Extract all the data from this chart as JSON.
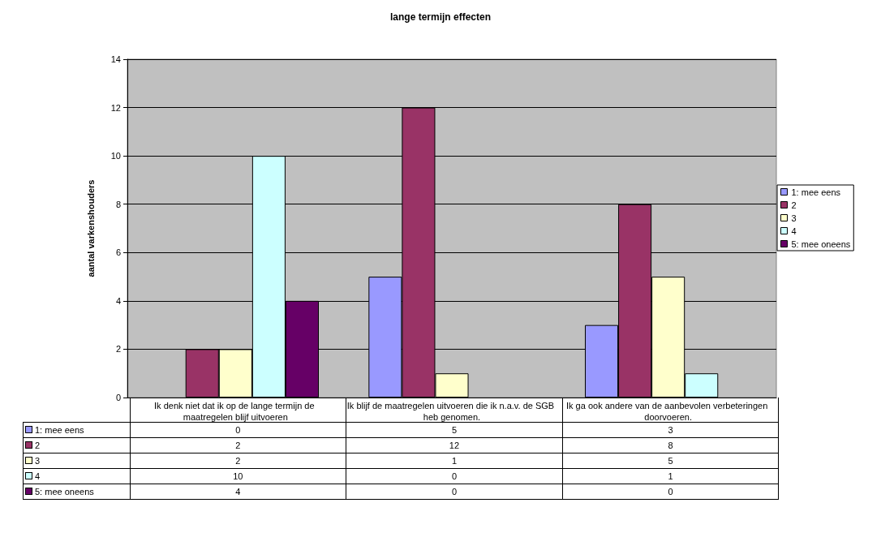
{
  "chart_data": {
    "type": "bar",
    "title": "lange termijn effecten",
    "ylabel": "aantal varkenshouders",
    "categories": [
      "Ik denk niet dat ik op de lange termijn de maatregelen blijf uitvoeren",
      "Ik blijf de maatregelen uitvoeren die ik n.a.v. de SGB heb genomen.",
      "Ik ga ook andere van de aanbevolen verbeteringen doorvoeren."
    ],
    "series": [
      {
        "name": "1: mee eens",
        "color": "#9999ff",
        "values": [
          0,
          5,
          3
        ]
      },
      {
        "name": "2",
        "color": "#993366",
        "values": [
          2,
          12,
          8
        ]
      },
      {
        "name": "3",
        "color": "#ffffcc",
        "values": [
          2,
          1,
          5
        ]
      },
      {
        "name": "4",
        "color": "#ccffff",
        "values": [
          10,
          0,
          1
        ]
      },
      {
        "name": "5: mee oneens",
        "color": "#660066",
        "values": [
          4,
          0,
          0
        ]
      }
    ],
    "ylim": [
      0,
      14
    ],
    "yticks": [
      0,
      2,
      4,
      6,
      8,
      10,
      12,
      14
    ],
    "grid": "y",
    "legend": "right",
    "data_labels": true
  }
}
